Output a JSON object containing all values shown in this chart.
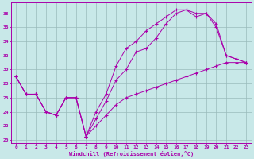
{
  "xlabel": "Windchill (Refroidissement éolien,°C)",
  "xlim": [
    -0.5,
    23.5
  ],
  "ylim": [
    19.5,
    39.5
  ],
  "xticks": [
    0,
    1,
    2,
    3,
    4,
    5,
    6,
    7,
    8,
    9,
    10,
    11,
    12,
    13,
    14,
    15,
    16,
    17,
    18,
    19,
    20,
    21,
    22,
    23
  ],
  "yticks": [
    20,
    22,
    24,
    26,
    28,
    30,
    32,
    34,
    36,
    38
  ],
  "bg_color": "#c8e8e8",
  "line_color": "#aa00aa",
  "grid_color": "#99bbbb",
  "line1_x": [
    0,
    1,
    2,
    3,
    4,
    5,
    6,
    7,
    8,
    9,
    10,
    11,
    12,
    13,
    14,
    15,
    16,
    17,
    18,
    19,
    20,
    21,
    22,
    23
  ],
  "line1_y": [
    29,
    26.5,
    26.5,
    24,
    23.5,
    26,
    26,
    20.5,
    23,
    25.5,
    28.5,
    30,
    32.5,
    33,
    34.5,
    36.5,
    38,
    38.5,
    38,
    38,
    36,
    32,
    31.5,
    31
  ],
  "line2_x": [
    0,
    1,
    2,
    3,
    4,
    5,
    6,
    7,
    8,
    9,
    10,
    11,
    12,
    13,
    14,
    15,
    16,
    17,
    18,
    19,
    20,
    21,
    22,
    23
  ],
  "line2_y": [
    29,
    26.5,
    26.5,
    24,
    23.5,
    26,
    26,
    20.5,
    24,
    26.5,
    30.5,
    33,
    34,
    35.5,
    36.5,
    37.5,
    38.5,
    38.5,
    37.5,
    38,
    36.5,
    32,
    31.5,
    31
  ],
  "line3_x": [
    0,
    1,
    2,
    3,
    4,
    5,
    6,
    7,
    8,
    9,
    10,
    11,
    12,
    13,
    14,
    15,
    16,
    17,
    18,
    19,
    20,
    21,
    22,
    23
  ],
  "line3_y": [
    29,
    26.5,
    26.5,
    24,
    23.5,
    26,
    26,
    20.5,
    22,
    23.5,
    25,
    26,
    26.5,
    27,
    27.5,
    28,
    28.5,
    29,
    29.5,
    30,
    30.5,
    31,
    31,
    31
  ]
}
